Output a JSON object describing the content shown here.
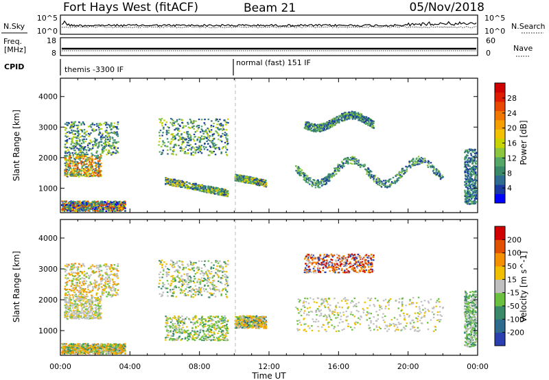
{
  "header": {
    "station": "Fort Hays West (fitACF)",
    "beam": "Beam 21",
    "date": "05/Nov/2018"
  },
  "strips": {
    "nsky": {
      "left_label": "N.Sky",
      "left_ticks": [
        "10^5",
        "10^0"
      ],
      "right_ticks": [
        "10^5",
        "10^0"
      ],
      "right_label": "N.Search"
    },
    "freq": {
      "left_label_1": "Freq.",
      "left_label_2": "[MHz]",
      "left_ticks": [
        "18",
        "8"
      ],
      "right_ticks": [
        "60",
        "0"
      ],
      "right_label": "Nave"
    },
    "cpid": {
      "label": "CPID",
      "modes": [
        "themis -3300 IF",
        "normal (fast) 151 IF"
      ]
    }
  },
  "xaxis": {
    "label": "Time UT",
    "ticks": [
      "00:00",
      "04:00",
      "08:00",
      "12:00",
      "16:00",
      "20:00",
      "00:00"
    ]
  },
  "chart_data": [
    {
      "type": "heatmap",
      "name": "power",
      "ylabel": "Slant Range [km]",
      "y_ticks": [
        1000,
        2000,
        3000,
        4000
      ],
      "ylim": [
        200,
        4600
      ],
      "xlim_hours": [
        0,
        24
      ],
      "colorbar": {
        "label": "Power [dB]",
        "ticks": [
          "28",
          "24",
          "20",
          "16",
          "12",
          "8",
          "4"
        ],
        "colors": [
          "#0000ff",
          "#1a3aa0",
          "#2e6b8e",
          "#3a8a6a",
          "#55a866",
          "#8cc63f",
          "#c8d400",
          "#f2c200",
          "#f5a000",
          "#f07800",
          "#e84800",
          "#e01c00",
          "#d00000"
        ]
      },
      "echo_regions": [
        {
          "t": [
            0.0,
            3.7
          ],
          "r": [
            200,
            600
          ],
          "kind": "ground"
        },
        {
          "t": [
            0.2,
            2.3
          ],
          "r": [
            1400,
            2100
          ],
          "kind": "strong"
        },
        {
          "t": [
            0.2,
            3.3
          ],
          "r": [
            2100,
            3200
          ],
          "kind": "moderate"
        },
        {
          "t": [
            5.6,
            9.6
          ],
          "r": [
            2100,
            3300
          ],
          "kind": "moderate"
        },
        {
          "t": [
            6.0,
            9.6
          ],
          "r": [
            700,
            1500
          ],
          "kind": "band"
        },
        {
          "t": [
            10.0,
            11.8
          ],
          "r": [
            1100,
            1500
          ],
          "kind": "band"
        },
        {
          "t": [
            13.5,
            22.0
          ],
          "r": [
            1000,
            2100
          ],
          "kind": "weak"
        },
        {
          "t": [
            14.0,
            18.0
          ],
          "r": [
            2900,
            3500
          ],
          "kind": "weak"
        },
        {
          "t": [
            23.2,
            24.0
          ],
          "r": [
            500,
            2300
          ],
          "kind": "edge"
        }
      ]
    },
    {
      "type": "heatmap",
      "name": "velocity",
      "ylabel": "Slant Range [km]",
      "y_ticks": [
        1000,
        2000,
        3000,
        4000
      ],
      "ylim": [
        200,
        4600
      ],
      "xlim_hours": [
        0,
        24
      ],
      "colorbar": {
        "label": "Velocity [m s^-1]",
        "ticks": [
          "200",
          "100",
          "50",
          "15",
          "-15",
          "-50",
          "-100",
          "-200"
        ],
        "colors": [
          "#2a3fb0",
          "#2e6b8e",
          "#3a8a6a",
          "#6cc040",
          "#c0c0c0",
          "#f0c000",
          "#f59000",
          "#e05000",
          "#d00000"
        ]
      },
      "echo_regions": [
        {
          "t": [
            0.0,
            3.7
          ],
          "r": [
            200,
            600
          ],
          "kind": "ground"
        },
        {
          "t": [
            0.2,
            2.3
          ],
          "r": [
            1400,
            2100
          ],
          "kind": "grey"
        },
        {
          "t": [
            0.2,
            3.3
          ],
          "r": [
            2100,
            3200
          ],
          "kind": "grey-orange"
        },
        {
          "t": [
            5.6,
            9.6
          ],
          "r": [
            2100,
            3300
          ],
          "kind": "grey-green"
        },
        {
          "t": [
            6.0,
            9.6
          ],
          "r": [
            700,
            1500
          ],
          "kind": "green"
        },
        {
          "t": [
            10.0,
            11.8
          ],
          "r": [
            1100,
            1500
          ],
          "kind": "mixed"
        },
        {
          "t": [
            13.5,
            22.0
          ],
          "r": [
            1000,
            2100
          ],
          "kind": "grey"
        },
        {
          "t": [
            14.0,
            18.0
          ],
          "r": [
            2900,
            3500
          ],
          "kind": "red-blue"
        },
        {
          "t": [
            23.2,
            24.0
          ],
          "r": [
            500,
            2300
          ],
          "kind": "green-grey"
        }
      ]
    }
  ]
}
